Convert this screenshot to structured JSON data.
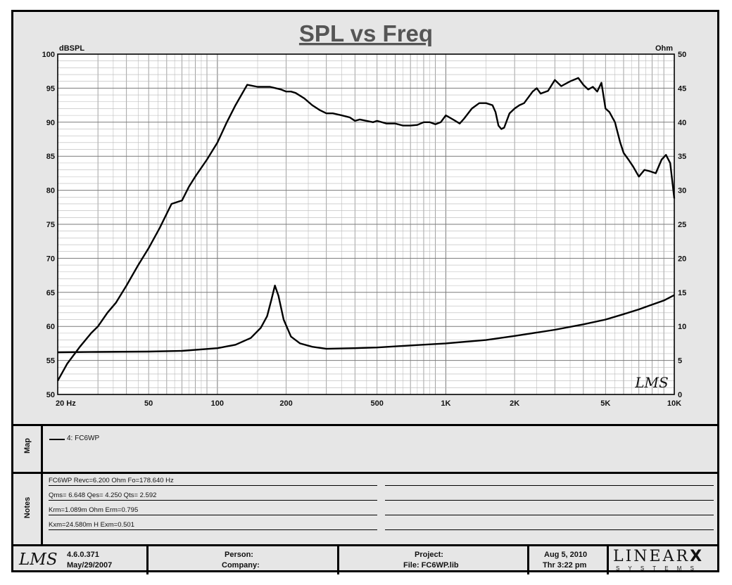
{
  "chart_data": {
    "type": "line",
    "title": "SPL vs Freq",
    "ylabel_left": "dBSPL",
    "ylabel_right": "Ohm",
    "x_scale": "log",
    "xlim": [
      20,
      10000
    ],
    "ylim_left": [
      50,
      100
    ],
    "ylim_right": [
      0,
      50
    ],
    "grid": true,
    "x_tick_labels": [
      {
        "value": 20,
        "label": "20  Hz"
      },
      {
        "value": 50,
        "label": "50"
      },
      {
        "value": 100,
        "label": "100"
      },
      {
        "value": 200,
        "label": "200"
      },
      {
        "value": 500,
        "label": "500"
      },
      {
        "value": 1000,
        "label": "1K"
      },
      {
        "value": 2000,
        "label": "2K"
      },
      {
        "value": 5000,
        "label": "5K"
      },
      {
        "value": 10000,
        "label": "10K"
      }
    ],
    "y_left_ticks": [
      50,
      55,
      60,
      65,
      70,
      75,
      80,
      85,
      90,
      95,
      100
    ],
    "y_right_ticks": [
      0,
      5,
      10,
      15,
      20,
      25,
      30,
      35,
      40,
      45,
      50
    ],
    "series": [
      {
        "axis": "left",
        "color": "#000000",
        "x": [
          20,
          22,
          25,
          28,
          30,
          33,
          36,
          40,
          45,
          50,
          56,
          63,
          70,
          75,
          80,
          90,
          100,
          110,
          120,
          135,
          150,
          160,
          170,
          180,
          190,
          200,
          210,
          220,
          240,
          260,
          280,
          300,
          320,
          350,
          380,
          400,
          420,
          450,
          480,
          500,
          550,
          600,
          650,
          700,
          750,
          800,
          850,
          900,
          950,
          1000,
          1050,
          1100,
          1150,
          1200,
          1300,
          1400,
          1500,
          1600,
          1650,
          1700,
          1750,
          1800,
          1900,
          2000,
          2100,
          2200,
          2400,
          2500,
          2600,
          2800,
          3000,
          3200,
          3500,
          3800,
          4000,
          4200,
          4400,
          4600,
          4800,
          5000,
          5200,
          5500,
          5800,
          6000,
          6300,
          6600,
          7000,
          7400,
          7800,
          8300,
          8800,
          9200,
          9600,
          10000
        ],
        "y": [
          52,
          54.5,
          57,
          59,
          60,
          62,
          63.5,
          66,
          69,
          71.5,
          74.5,
          78,
          78.5,
          80.5,
          82,
          84.5,
          87,
          90,
          92.5,
          95.5,
          95.2,
          95.2,
          95.2,
          95.0,
          94.8,
          94.5,
          94.5,
          94.3,
          93.5,
          92.5,
          91.8,
          91.3,
          91.3,
          91.0,
          90.7,
          90.2,
          90.4,
          90.2,
          90.0,
          90.2,
          89.8,
          89.8,
          89.5,
          89.5,
          89.6,
          90.0,
          90.0,
          89.7,
          90.0,
          91.0,
          90.6,
          90.2,
          89.8,
          90.5,
          92.0,
          92.8,
          92.8,
          92.5,
          91.5,
          89.5,
          89.0,
          89.2,
          91.3,
          92.0,
          92.5,
          92.8,
          94.5,
          95.0,
          94.2,
          94.6,
          96.2,
          95.3,
          96.0,
          96.5,
          95.5,
          94.8,
          95.2,
          94.5,
          95.8,
          92.0,
          91.5,
          90.0,
          87.0,
          85.5,
          84.5,
          83.5,
          82.0,
          83.0,
          82.8,
          82.5,
          84.5,
          85.2,
          84.0,
          78.8
        ]
      },
      {
        "axis": "right",
        "color": "#000000",
        "x": [
          20,
          30,
          50,
          70,
          100,
          120,
          140,
          155,
          165,
          172,
          178.6,
          185,
          195,
          210,
          230,
          260,
          300,
          400,
          500,
          700,
          1000,
          1500,
          2000,
          3000,
          4000,
          5000,
          6000,
          7000,
          8000,
          9000,
          10000
        ],
        "y": [
          6.2,
          6.25,
          6.3,
          6.4,
          6.8,
          7.3,
          8.3,
          9.8,
          11.5,
          13.8,
          16.0,
          14.5,
          11.0,
          8.5,
          7.5,
          7.0,
          6.7,
          6.8,
          6.9,
          7.2,
          7.5,
          8.0,
          8.6,
          9.5,
          10.3,
          11.0,
          11.8,
          12.5,
          13.2,
          13.8,
          14.6
        ]
      }
    ]
  },
  "header": {
    "title": "SPL vs Freq",
    "left_unit": "dBSPL",
    "right_unit": "Ohm",
    "watermark": "LMS"
  },
  "map": {
    "label": "Map",
    "legend_text": "4: FC6WP"
  },
  "notes": {
    "label": "Notes",
    "lines": [
      "FC6WP  Revc=6.200  Ohm   Fo=178.640  Hz",
      "Qms= 6.648   Qes= 4.250   Qts= 2.592",
      "Krm=1.089m  Ohm   Erm=0.795",
      "Kxm=24.580m  H   Exm=0.501"
    ]
  },
  "footer": {
    "logo": "LMS",
    "version": "4.6.0.371",
    "version_date": "May/29/2007",
    "person_label": "Person:",
    "company_label": "Company:",
    "project_label": "Project:",
    "file_label": "File: FC6WP.lib",
    "date": "Aug  5, 2010",
    "time": "Thr  3:22 pm",
    "brand_main": "LINEAR",
    "brand_x": "X",
    "brand_sub": "S Y S T E M S"
  }
}
